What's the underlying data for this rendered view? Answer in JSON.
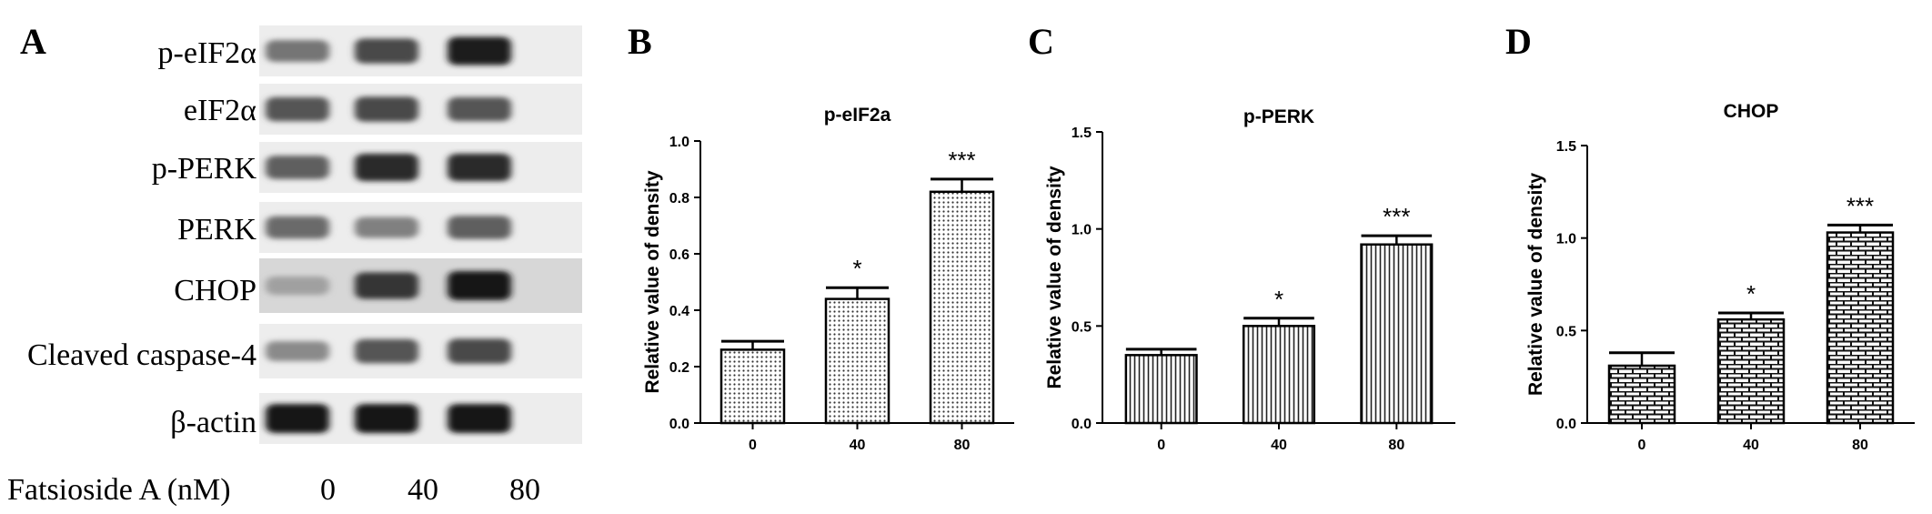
{
  "panels": {
    "a": "A",
    "b": "B",
    "c": "C",
    "d": "D"
  },
  "blot": {
    "rows": [
      {
        "label": "p-eIF2α",
        "intensities": [
          0.55,
          0.75,
          0.95
        ]
      },
      {
        "label": "eIF2α",
        "intensities": [
          0.7,
          0.75,
          0.7
        ]
      },
      {
        "label": "p-PERK",
        "intensities": [
          0.65,
          0.9,
          0.9
        ]
      },
      {
        "label": "PERK",
        "intensities": [
          0.6,
          0.5,
          0.65
        ]
      },
      {
        "label": "CHOP",
        "intensities": [
          0.35,
          0.85,
          1.0
        ]
      },
      {
        "label": "Cleaved caspase-4",
        "intensities": [
          0.45,
          0.7,
          0.75
        ]
      },
      {
        "label": "β-actin",
        "intensities": [
          1.0,
          1.0,
          1.0
        ]
      }
    ],
    "treatment_label": "Fatsioside A (nM)",
    "doses": [
      "0",
      "40",
      "80"
    ]
  },
  "chart_data": [
    {
      "type": "bar",
      "title": "p-eIF2a",
      "ylabel": "Relative value of density",
      "xlabel": "",
      "categories": [
        "0",
        "40",
        "80"
      ],
      "values": [
        0.26,
        0.44,
        0.82
      ],
      "errors": [
        0.03,
        0.04,
        0.045
      ],
      "significance": [
        "",
        "*",
        "***"
      ],
      "ylim": [
        0,
        1.0
      ],
      "yticks": [
        "0.0",
        "0.2",
        "0.4",
        "0.6",
        "0.8",
        "1.0"
      ],
      "pattern": "dots"
    },
    {
      "type": "bar",
      "title": "p-PERK",
      "ylabel": "Relative value of density",
      "xlabel": "",
      "categories": [
        "0",
        "40",
        "80"
      ],
      "values": [
        0.35,
        0.5,
        0.92
      ],
      "errors": [
        0.03,
        0.04,
        0.045
      ],
      "significance": [
        "",
        "*",
        "***"
      ],
      "ylim": [
        0,
        1.5
      ],
      "yticks": [
        "0.0",
        "0.5",
        "1.0",
        "1.5"
      ],
      "pattern": "vlines"
    },
    {
      "type": "bar",
      "title": "CHOP",
      "ylabel": "Relative value of density",
      "xlabel": "",
      "categories": [
        "0",
        "40",
        "80"
      ],
      "values": [
        0.31,
        0.56,
        1.03
      ],
      "errors": [
        0.07,
        0.035,
        0.04
      ],
      "significance": [
        "",
        "*",
        "***"
      ],
      "ylim": [
        0,
        1.5
      ],
      "yticks": [
        "0.0",
        "0.5",
        "1.0",
        "1.5"
      ],
      "pattern": "bricks"
    }
  ]
}
